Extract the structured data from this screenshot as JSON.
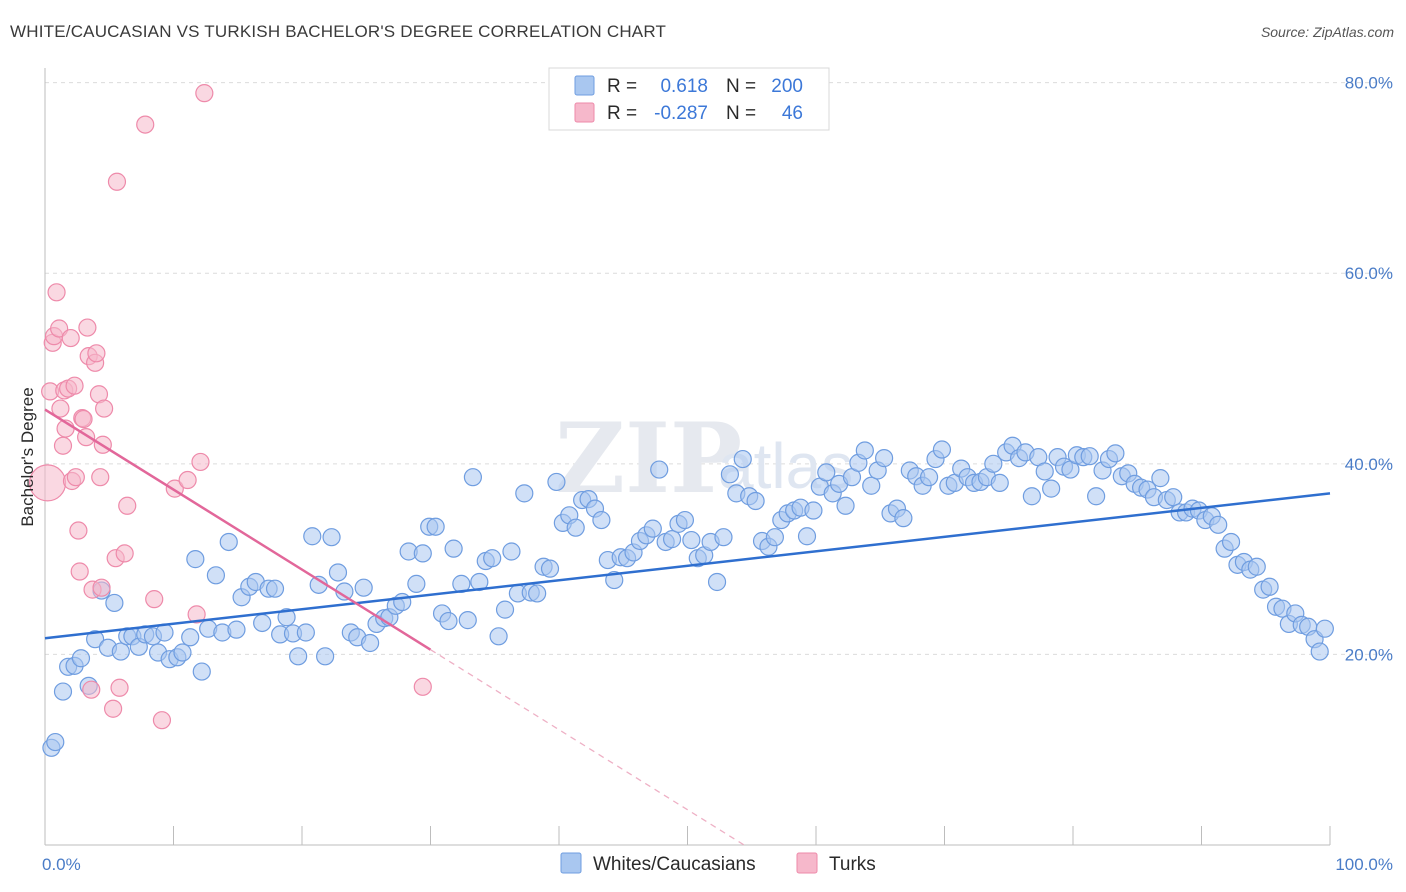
{
  "title": "WHITE/CAUCASIAN VS TURKISH BACHELOR'S DEGREE CORRELATION CHART",
  "source": "Source: ZipAtlas.com",
  "watermark": "ZIPatlas",
  "legend": {
    "rows": [
      {
        "r_label": "R =",
        "r_value": "0.618",
        "n_label": "N =",
        "n_value": "200",
        "color": "#a9c7f0"
      },
      {
        "r_label": "R =",
        "r_value": "-0.287",
        "n_label": "N =",
        "n_value": "46",
        "color": "#f6b8cb"
      }
    ]
  },
  "bottom_legend": [
    {
      "label": "Whites/Caucasians",
      "color": "#a9c7f0"
    },
    {
      "label": "Turks",
      "color": "#f6b8cb"
    }
  ],
  "chart_data": {
    "type": "scatter",
    "title": "WHITE/CAUCASIAN VS TURKISH BACHELOR'S DEGREE CORRELATION CHART",
    "xlabel": "",
    "ylabel": "Bachelor's Degree",
    "xlim": [
      0,
      100
    ],
    "ylim": [
      0,
      80
    ],
    "x_tick_labels": [
      "0.0%",
      "100.0%"
    ],
    "y_ticks": [
      20,
      40,
      60,
      80
    ],
    "y_tick_labels": [
      "20.0%",
      "40.0%",
      "60.0%",
      "80.0%"
    ],
    "grid": true,
    "legend_position": "top-center",
    "series": [
      {
        "name": "Whites/Caucasians",
        "color": "#6f9de0",
        "fill": "#a9c7f0",
        "trend": {
          "x": [
            0,
            100
          ],
          "y": [
            21.7,
            36.9
          ]
        },
        "points": [
          [
            0.5,
            10.2
          ],
          [
            0.8,
            10.8
          ],
          [
            1.4,
            16.1
          ],
          [
            1.8,
            18.7
          ],
          [
            2.3,
            18.8
          ],
          [
            2.8,
            19.6
          ],
          [
            3.4,
            16.7
          ],
          [
            3.9,
            21.6
          ],
          [
            4.4,
            26.7
          ],
          [
            4.9,
            20.7
          ],
          [
            5.4,
            25.4
          ],
          [
            5.9,
            20.3
          ],
          [
            6.4,
            21.9
          ],
          [
            6.8,
            21.9
          ],
          [
            7.3,
            20.8
          ],
          [
            7.8,
            22.1
          ],
          [
            8.4,
            21.9
          ],
          [
            8.8,
            20.2
          ],
          [
            9.3,
            22.3
          ],
          [
            9.7,
            19.5
          ],
          [
            10.3,
            19.7
          ],
          [
            10.7,
            20.2
          ],
          [
            11.3,
            21.8
          ],
          [
            11.7,
            30.0
          ],
          [
            12.2,
            18.2
          ],
          [
            12.7,
            22.7
          ],
          [
            13.3,
            28.3
          ],
          [
            13.8,
            22.3
          ],
          [
            14.3,
            31.8
          ],
          [
            14.9,
            22.6
          ],
          [
            15.3,
            26.0
          ],
          [
            15.9,
            27.1
          ],
          [
            16.4,
            27.6
          ],
          [
            16.9,
            23.3
          ],
          [
            17.4,
            26.9
          ],
          [
            17.9,
            26.9
          ],
          [
            18.3,
            22.1
          ],
          [
            18.8,
            23.9
          ],
          [
            19.3,
            22.2
          ],
          [
            19.7,
            19.8
          ],
          [
            20.3,
            22.3
          ],
          [
            20.8,
            32.4
          ],
          [
            21.3,
            27.3
          ],
          [
            21.8,
            19.8
          ],
          [
            22.3,
            32.3
          ],
          [
            22.8,
            28.6
          ],
          [
            23.3,
            26.6
          ],
          [
            23.8,
            22.3
          ],
          [
            24.3,
            21.8
          ],
          [
            24.8,
            27.0
          ],
          [
            25.3,
            21.2
          ],
          [
            25.8,
            23.2
          ],
          [
            26.4,
            23.8
          ],
          [
            26.8,
            23.9
          ],
          [
            27.3,
            25.1
          ],
          [
            27.8,
            25.5
          ],
          [
            28.3,
            30.8
          ],
          [
            28.9,
            27.4
          ],
          [
            29.4,
            30.6
          ],
          [
            29.9,
            33.4
          ],
          [
            30.4,
            33.4
          ],
          [
            30.9,
            24.3
          ],
          [
            31.4,
            23.5
          ],
          [
            31.8,
            31.1
          ],
          [
            32.4,
            27.4
          ],
          [
            32.9,
            23.6
          ],
          [
            33.3,
            38.6
          ],
          [
            33.8,
            27.6
          ],
          [
            34.3,
            29.8
          ],
          [
            34.8,
            30.1
          ],
          [
            35.3,
            21.9
          ],
          [
            35.8,
            24.7
          ],
          [
            36.3,
            30.8
          ],
          [
            36.8,
            26.4
          ],
          [
            37.3,
            36.9
          ],
          [
            37.8,
            26.5
          ],
          [
            38.3,
            26.4
          ],
          [
            38.8,
            29.2
          ],
          [
            39.3,
            29.0
          ],
          [
            39.8,
            38.1
          ],
          [
            40.3,
            33.8
          ],
          [
            40.8,
            34.6
          ],
          [
            41.3,
            33.3
          ],
          [
            41.8,
            36.2
          ],
          [
            42.3,
            36.3
          ],
          [
            42.8,
            35.3
          ],
          [
            43.3,
            34.1
          ],
          [
            43.8,
            29.9
          ],
          [
            44.3,
            27.8
          ],
          [
            44.8,
            30.2
          ],
          [
            45.3,
            30.1
          ],
          [
            45.8,
            30.7
          ],
          [
            46.3,
            31.9
          ],
          [
            46.8,
            32.5
          ],
          [
            47.3,
            33.2
          ],
          [
            47.8,
            39.4
          ],
          [
            48.3,
            31.8
          ],
          [
            48.8,
            32.1
          ],
          [
            49.3,
            33.7
          ],
          [
            49.8,
            34.1
          ],
          [
            50.3,
            32.0
          ],
          [
            50.8,
            30.1
          ],
          [
            51.3,
            30.4
          ],
          [
            51.8,
            31.8
          ],
          [
            52.3,
            27.6
          ],
          [
            52.8,
            32.3
          ],
          [
            53.3,
            38.9
          ],
          [
            53.8,
            36.9
          ],
          [
            54.3,
            40.5
          ],
          [
            54.8,
            36.6
          ],
          [
            55.3,
            36.1
          ],
          [
            55.8,
            31.9
          ],
          [
            56.3,
            31.3
          ],
          [
            56.8,
            32.3
          ],
          [
            57.3,
            34.1
          ],
          [
            57.8,
            34.8
          ],
          [
            58.3,
            35.1
          ],
          [
            58.8,
            35.4
          ],
          [
            59.3,
            32.4
          ],
          [
            59.8,
            35.1
          ],
          [
            60.3,
            37.6
          ],
          [
            60.8,
            39.1
          ],
          [
            61.3,
            36.9
          ],
          [
            61.8,
            37.9
          ],
          [
            62.3,
            35.6
          ],
          [
            62.8,
            38.6
          ],
          [
            63.3,
            40.1
          ],
          [
            63.8,
            41.4
          ],
          [
            64.3,
            37.7
          ],
          [
            64.8,
            39.3
          ],
          [
            65.3,
            40.6
          ],
          [
            65.8,
            34.8
          ],
          [
            66.3,
            35.3
          ],
          [
            66.8,
            34.3
          ],
          [
            67.3,
            39.3
          ],
          [
            67.8,
            38.7
          ],
          [
            68.3,
            37.7
          ],
          [
            68.8,
            38.6
          ],
          [
            69.3,
            40.5
          ],
          [
            69.8,
            41.5
          ],
          [
            70.3,
            37.7
          ],
          [
            70.8,
            38.0
          ],
          [
            71.3,
            39.5
          ],
          [
            71.8,
            38.6
          ],
          [
            72.3,
            38.0
          ],
          [
            72.8,
            38.1
          ],
          [
            73.3,
            38.6
          ],
          [
            73.8,
            40.0
          ],
          [
            74.3,
            38.0
          ],
          [
            74.8,
            41.2
          ],
          [
            75.3,
            41.9
          ],
          [
            75.8,
            40.6
          ],
          [
            76.3,
            41.2
          ],
          [
            76.8,
            36.6
          ],
          [
            77.3,
            40.7
          ],
          [
            77.8,
            39.2
          ],
          [
            78.3,
            37.4
          ],
          [
            78.8,
            40.7
          ],
          [
            79.3,
            39.7
          ],
          [
            79.8,
            39.4
          ],
          [
            80.3,
            40.9
          ],
          [
            80.8,
            40.7
          ],
          [
            81.3,
            40.8
          ],
          [
            81.8,
            36.6
          ],
          [
            82.3,
            39.3
          ],
          [
            82.8,
            40.5
          ],
          [
            83.3,
            41.1
          ],
          [
            83.8,
            38.7
          ],
          [
            84.3,
            39.0
          ],
          [
            84.8,
            37.9
          ],
          [
            85.3,
            37.5
          ],
          [
            85.8,
            37.3
          ],
          [
            86.3,
            36.5
          ],
          [
            86.8,
            38.5
          ],
          [
            87.3,
            36.2
          ],
          [
            87.8,
            36.5
          ],
          [
            88.3,
            34.9
          ],
          [
            88.8,
            34.9
          ],
          [
            89.3,
            35.3
          ],
          [
            89.8,
            35.1
          ],
          [
            90.3,
            34.1
          ],
          [
            90.8,
            34.5
          ],
          [
            91.3,
            33.6
          ],
          [
            91.8,
            31.1
          ],
          [
            92.3,
            31.8
          ],
          [
            92.8,
            29.4
          ],
          [
            93.3,
            29.7
          ],
          [
            93.8,
            28.9
          ],
          [
            94.3,
            29.2
          ],
          [
            94.8,
            26.8
          ],
          [
            95.3,
            27.1
          ],
          [
            95.8,
            25.0
          ],
          [
            96.3,
            24.8
          ],
          [
            96.8,
            23.2
          ],
          [
            97.3,
            24.3
          ],
          [
            97.8,
            23.1
          ],
          [
            98.3,
            22.9
          ],
          [
            98.8,
            21.6
          ],
          [
            99.2,
            20.3
          ],
          [
            99.6,
            22.7
          ]
        ]
      },
      {
        "name": "Turks",
        "color": "#ee8aaa",
        "fill": "#f6b8cb",
        "trend": {
          "x": [
            0,
            30
          ],
          "y": [
            45.7,
            20.5
          ]
        },
        "points": [
          [
            0.2,
            38.0
          ],
          [
            0.4,
            47.6
          ],
          [
            0.6,
            52.7
          ],
          [
            0.7,
            53.4
          ],
          [
            0.9,
            58.0
          ],
          [
            1.1,
            54.2
          ],
          [
            1.2,
            45.8
          ],
          [
            1.4,
            41.9
          ],
          [
            1.5,
            47.7
          ],
          [
            1.6,
            43.7
          ],
          [
            1.8,
            47.9
          ],
          [
            2.0,
            53.2
          ],
          [
            2.1,
            38.2
          ],
          [
            2.3,
            48.2
          ],
          [
            2.4,
            38.6
          ],
          [
            2.6,
            33.0
          ],
          [
            2.7,
            28.7
          ],
          [
            2.9,
            44.8
          ],
          [
            3.0,
            44.7
          ],
          [
            3.2,
            42.8
          ],
          [
            3.3,
            54.3
          ],
          [
            3.4,
            51.3
          ],
          [
            3.6,
            16.3
          ],
          [
            3.7,
            26.8
          ],
          [
            3.9,
            50.6
          ],
          [
            4.0,
            51.6
          ],
          [
            4.2,
            47.3
          ],
          [
            4.3,
            38.6
          ],
          [
            4.4,
            27.0
          ],
          [
            4.5,
            42.0
          ],
          [
            4.6,
            45.8
          ],
          [
            5.3,
            14.3
          ],
          [
            5.5,
            30.1
          ],
          [
            5.6,
            69.6
          ],
          [
            5.8,
            16.5
          ],
          [
            6.2,
            30.6
          ],
          [
            6.4,
            35.6
          ],
          [
            7.8,
            75.6
          ],
          [
            8.5,
            25.8
          ],
          [
            9.1,
            13.1
          ],
          [
            10.1,
            37.4
          ],
          [
            11.1,
            38.3
          ],
          [
            11.8,
            24.2
          ],
          [
            12.1,
            40.2
          ],
          [
            12.4,
            78.9
          ],
          [
            29.4,
            16.6
          ]
        ]
      }
    ]
  }
}
